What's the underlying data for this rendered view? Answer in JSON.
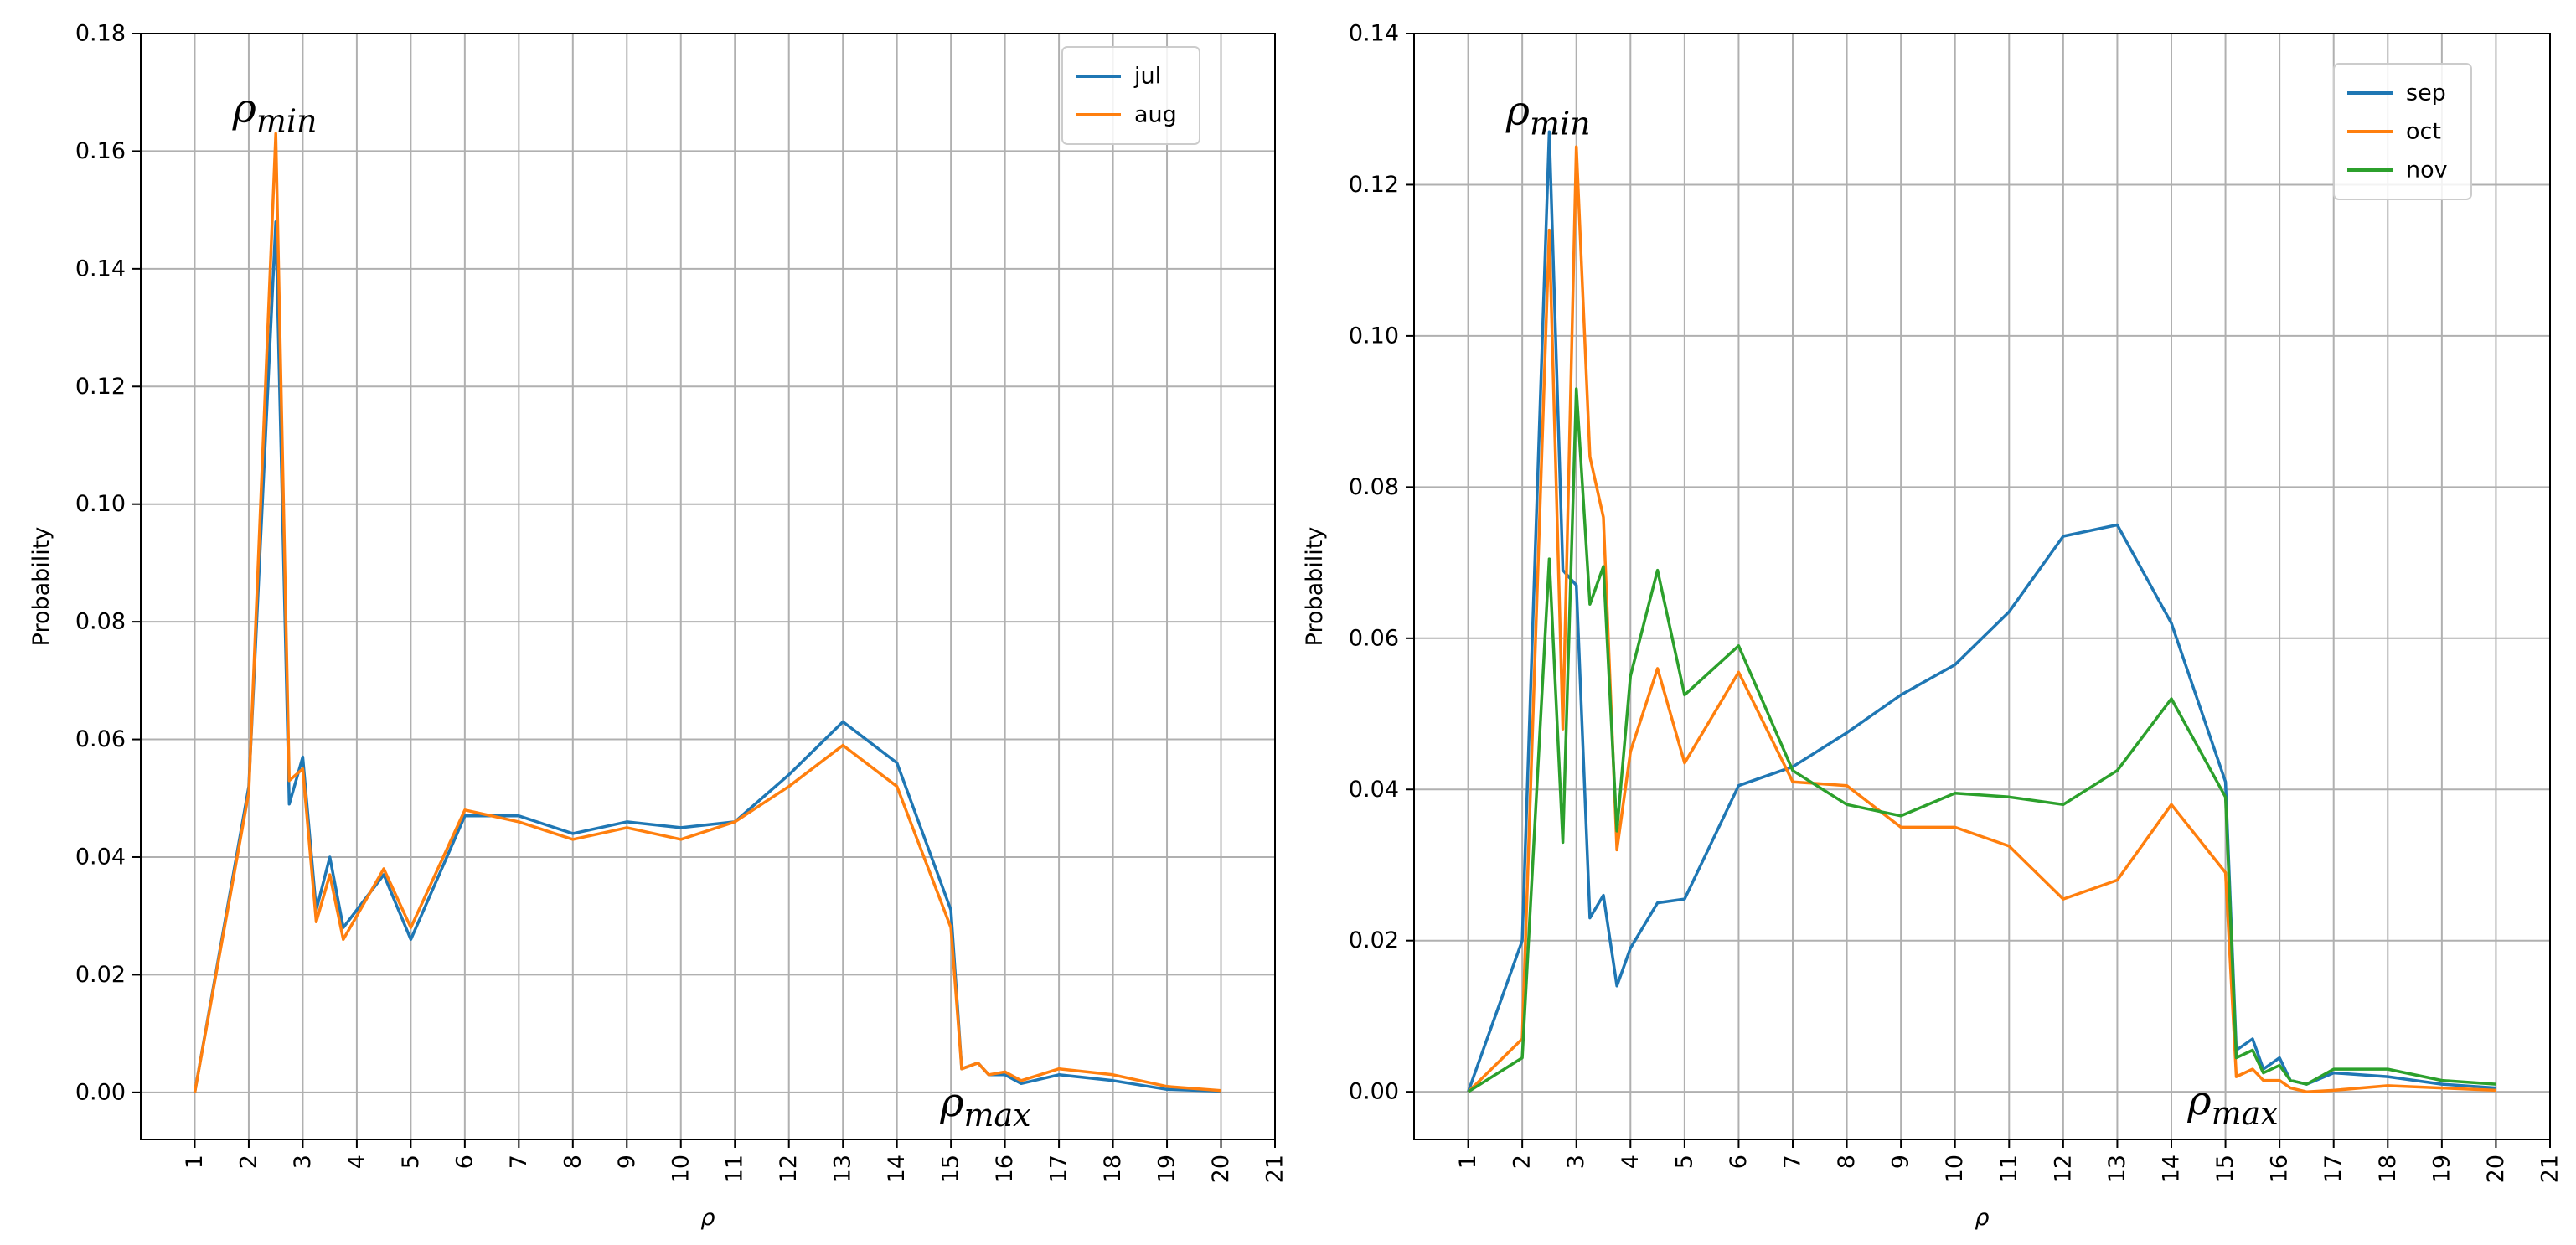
{
  "chart_data": [
    {
      "type": "line",
      "xlabel": "ρ",
      "ylabel": "Probability",
      "xlim": [
        0,
        21
      ],
      "ylim": [
        -0.008,
        0.18
      ],
      "xticks": [
        1,
        2,
        3,
        4,
        5,
        6,
        7,
        8,
        9,
        10,
        11,
        12,
        13,
        14,
        15,
        16,
        17,
        18,
        19,
        20,
        21
      ],
      "yticks": [
        0.0,
        0.02,
        0.04,
        0.06,
        0.08,
        0.1,
        0.12,
        0.14,
        0.16,
        0.18
      ],
      "ytick_labels": [
        "0.00",
        "0.02",
        "0.04",
        "0.06",
        "0.08",
        "0.10",
        "0.12",
        "0.14",
        "0.16",
        "0.18"
      ],
      "grid": true,
      "legend_position": "top-right",
      "annotations": [
        {
          "base": "ρ",
          "sub": "min",
          "x": 1.7,
          "y": 0.165
        },
        {
          "base": "ρ",
          "sub": "max",
          "x": 14.8,
          "y": -0.004
        }
      ],
      "series": [
        {
          "name": "jul",
          "color": "#1f77b4",
          "x": [
            1,
            2,
            2.5,
            2.75,
            3,
            3.25,
            3.5,
            3.75,
            4.5,
            5,
            6,
            7,
            8,
            9,
            10,
            11,
            12,
            13,
            14,
            15,
            15.2,
            15.5,
            15.7,
            16,
            16.3,
            17,
            18,
            19,
            20
          ],
          "y": [
            0.0,
            0.052,
            0.148,
            0.049,
            0.057,
            0.031,
            0.04,
            0.028,
            0.037,
            0.026,
            0.047,
            0.047,
            0.044,
            0.046,
            0.045,
            0.046,
            0.054,
            0.063,
            0.056,
            0.031,
            0.004,
            0.005,
            0.003,
            0.003,
            0.0015,
            0.003,
            0.002,
            0.0005,
            0.0002
          ]
        },
        {
          "name": "aug",
          "color": "#ff7f0e",
          "x": [
            1,
            2,
            2.5,
            2.75,
            3,
            3.25,
            3.5,
            3.75,
            4.5,
            5,
            6,
            7,
            8,
            9,
            10,
            11,
            12,
            13,
            14,
            15,
            15.2,
            15.5,
            15.7,
            16,
            16.3,
            17,
            18,
            19,
            20
          ],
          "y": [
            0.0,
            0.051,
            0.163,
            0.053,
            0.055,
            0.029,
            0.037,
            0.026,
            0.038,
            0.028,
            0.048,
            0.046,
            0.043,
            0.045,
            0.043,
            0.046,
            0.052,
            0.059,
            0.052,
            0.028,
            0.004,
            0.005,
            0.003,
            0.0035,
            0.002,
            0.004,
            0.003,
            0.001,
            0.0003
          ]
        }
      ]
    },
    {
      "type": "line",
      "xlabel": "ρ",
      "ylabel": "Probability",
      "xlim": [
        0,
        21
      ],
      "ylim": [
        -0.0063,
        0.14
      ],
      "xticks": [
        1,
        2,
        3,
        4,
        5,
        6,
        7,
        8,
        9,
        10,
        11,
        12,
        13,
        14,
        15,
        16,
        17,
        18,
        19,
        20,
        21
      ],
      "yticks": [
        0.0,
        0.02,
        0.04,
        0.06,
        0.08,
        0.1,
        0.12,
        0.14
      ],
      "ytick_labels": [
        "0.00",
        "0.02",
        "0.04",
        "0.06",
        "0.08",
        "0.10",
        "0.12",
        "0.14"
      ],
      "grid": true,
      "legend_position": "top-right",
      "annotations": [
        {
          "base": "ρ",
          "sub": "min",
          "x": 1.7,
          "y": 0.128
        },
        {
          "base": "ρ",
          "sub": "max",
          "x": 14.3,
          "y": -0.003
        }
      ],
      "series": [
        {
          "name": "sep",
          "color": "#1f77b4",
          "x": [
            1,
            2,
            2.5,
            2.75,
            3,
            3.25,
            3.5,
            3.75,
            4,
            4.5,
            5,
            6,
            7,
            8,
            9,
            10,
            11,
            12,
            13,
            14,
            15,
            15.2,
            15.5,
            15.7,
            16,
            16.2,
            16.5,
            17,
            18,
            19,
            20
          ],
          "y": [
            0.0,
            0.02,
            0.127,
            0.069,
            0.067,
            0.023,
            0.026,
            0.014,
            0.019,
            0.025,
            0.0255,
            0.0405,
            0.043,
            0.0475,
            0.0525,
            0.0565,
            0.0635,
            0.0735,
            0.075,
            0.062,
            0.041,
            0.0055,
            0.007,
            0.003,
            0.0045,
            0.0015,
            0.001,
            0.0025,
            0.002,
            0.001,
            0.0005
          ]
        },
        {
          "name": "oct",
          "color": "#ff7f0e",
          "x": [
            1,
            2,
            2.5,
            2.75,
            3,
            3.25,
            3.5,
            3.75,
            4,
            4.5,
            5,
            6,
            7,
            8,
            9,
            10,
            11,
            12,
            13,
            14,
            15,
            15.2,
            15.5,
            15.7,
            16,
            16.2,
            16.5,
            17,
            18,
            19,
            20
          ],
          "y": [
            0.0,
            0.007,
            0.114,
            0.048,
            0.125,
            0.084,
            0.076,
            0.032,
            0.045,
            0.056,
            0.0435,
            0.0555,
            0.041,
            0.0405,
            0.035,
            0.035,
            0.0325,
            0.0255,
            0.028,
            0.038,
            0.029,
            0.002,
            0.003,
            0.0015,
            0.0015,
            0.0005,
            0.0,
            0.0002,
            0.0008,
            0.0005,
            0.0002
          ]
        },
        {
          "name": "nov",
          "color": "#2ca02c",
          "x": [
            1,
            2,
            2.5,
            2.75,
            3,
            3.25,
            3.5,
            3.75,
            4,
            4.5,
            5,
            6,
            7,
            8,
            9,
            10,
            11,
            12,
            13,
            14,
            15,
            15.2,
            15.5,
            15.7,
            16,
            16.2,
            16.5,
            17,
            18,
            19,
            20
          ],
          "y": [
            0.0,
            0.0045,
            0.0705,
            0.033,
            0.093,
            0.0645,
            0.0695,
            0.0345,
            0.055,
            0.069,
            0.0525,
            0.059,
            0.0425,
            0.038,
            0.0365,
            0.0395,
            0.039,
            0.038,
            0.0425,
            0.052,
            0.039,
            0.0045,
            0.0055,
            0.0025,
            0.0035,
            0.0015,
            0.001,
            0.003,
            0.003,
            0.0015,
            0.001
          ]
        }
      ]
    }
  ]
}
